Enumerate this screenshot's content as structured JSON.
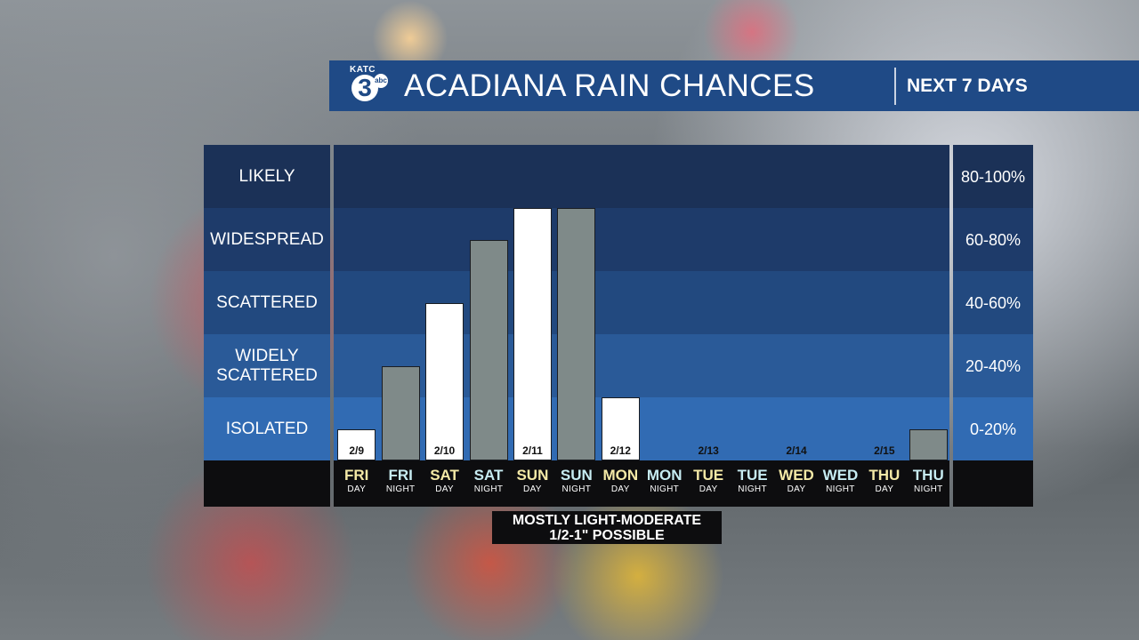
{
  "header": {
    "station_call": "KATC",
    "station_number": "3",
    "network": "abc",
    "title": "ACADIANA RAIN CHANCES",
    "subtitle": "NEXT 7 DAYS"
  },
  "note": {
    "line1": "MOSTLY LIGHT-MODERATE",
    "line2": "1/2-1\" POSSIBLE"
  },
  "colors": {
    "header_bg": "#1f4a86",
    "band_likely": "#1b3157",
    "band_widespread": "#1e3b6a",
    "band_scattered": "#22497f",
    "band_widely_scattered": "#2a5a98",
    "band_isolated": "#316bb3",
    "day_bar": "#ffffff",
    "night_bar": "#7f8a89",
    "day_text": "#f4e9a6",
    "night_text": "#c7ecf2"
  },
  "chart_data": {
    "type": "bar",
    "categories": [
      "FRI DAY",
      "FRI NIGHT",
      "SAT DAY",
      "SAT NIGHT",
      "SUN DAY",
      "SUN NIGHT",
      "MON DAY",
      "MON NIGHT",
      "TUE DAY",
      "TUE NIGHT",
      "WED DAY",
      "WED NIGHT",
      "THU DAY",
      "THU NIGHT"
    ],
    "days": [
      "FRI",
      "FRI",
      "SAT",
      "SAT",
      "SUN",
      "SUN",
      "MON",
      "MON",
      "TUE",
      "TUE",
      "WED",
      "WED",
      "THU",
      "THU"
    ],
    "periods": [
      "DAY",
      "NIGHT",
      "DAY",
      "NIGHT",
      "DAY",
      "NIGHT",
      "DAY",
      "NIGHT",
      "DAY",
      "NIGHT",
      "DAY",
      "NIGHT",
      "DAY",
      "NIGHT"
    ],
    "dates": [
      "2/9",
      "",
      "2/10",
      "",
      "2/11",
      "",
      "2/12",
      "",
      "2/13",
      "",
      "2/14",
      "",
      "2/15",
      ""
    ],
    "values": [
      10,
      30,
      50,
      70,
      80,
      80,
      20,
      0,
      0,
      0,
      0,
      0,
      0,
      10
    ],
    "ylim": [
      0,
      100
    ],
    "bands": [
      {
        "label": "LIKELY",
        "range": "80-100%"
      },
      {
        "label": "WIDESPREAD",
        "range": "60-80%"
      },
      {
        "label": "SCATTERED",
        "range": "40-60%"
      },
      {
        "label": "WIDELY\nSCATTERED",
        "range": "20-40%"
      },
      {
        "label": "ISOLATED",
        "range": "0-20%"
      }
    ]
  }
}
